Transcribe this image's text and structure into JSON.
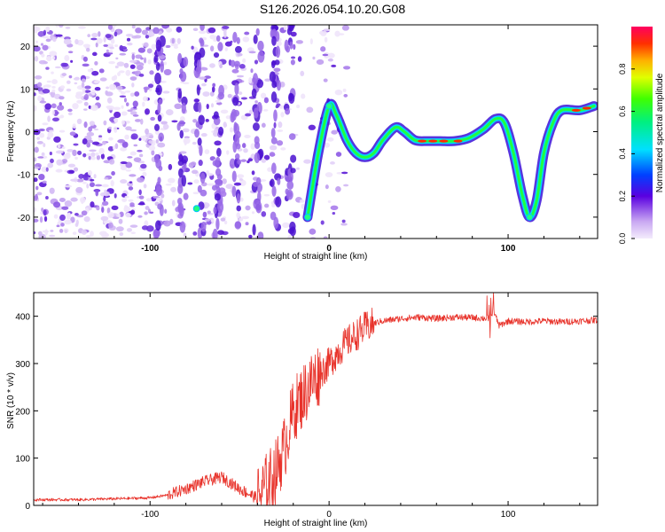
{
  "title": "S126.2026.054.10.20.G08",
  "colors": {
    "snr_line": "#e8332b",
    "axis": "#000000",
    "background": "#ffffff"
  },
  "chart_data": [
    {
      "type": "heatmap",
      "title": "",
      "xlabel": "Height of straight line (km)",
      "ylabel": "Frequency (Hz)",
      "xlim": [
        -165,
        150
      ],
      "ylim": [
        -25,
        25
      ],
      "xticks": [
        -100,
        0,
        100
      ],
      "xtick_labels": [
        "-100",
        "0",
        "100"
      ],
      "yticks": [
        -20,
        -10,
        0,
        10,
        20
      ],
      "ytick_labels": [
        "-20",
        "-10",
        "0",
        "10",
        "20"
      ],
      "colorbar": {
        "label": "Normalized spectral amplitude",
        "range": [
          0,
          1
        ],
        "ticks": [
          0.0,
          0.2,
          0.4,
          0.6,
          0.8
        ],
        "tick_labels": [
          "0.0",
          "0.2",
          "0.4",
          "0.6",
          "0.8"
        ],
        "colormap": "rainbow (lavender to magenta)"
      },
      "ridge": {
        "x": [
          -12,
          -6,
          0,
          4,
          10,
          15,
          20,
          25,
          30,
          37,
          42,
          48,
          55,
          62,
          70,
          78,
          86,
          93,
          98,
          103,
          108,
          112,
          116,
          120,
          125,
          130,
          140,
          148
        ],
        "y": [
          -20,
          -5,
          6,
          4,
          -2,
          -5,
          -6,
          -5,
          -2,
          1,
          0,
          -2,
          -2.2,
          -2.2,
          -2.2,
          -1.5,
          0.5,
          3,
          2,
          -5,
          -15,
          -20,
          -16,
          -5,
          2,
          5,
          5,
          6
        ]
      }
    },
    {
      "type": "line",
      "title": "",
      "xlabel": "Height of straight line (km)",
      "ylabel": "SNR (10 * v/v)",
      "xlim": [
        -165,
        150
      ],
      "ylim": [
        0,
        450
      ],
      "xticks": [
        -100,
        0,
        100
      ],
      "xtick_labels": [
        "-100",
        "0",
        "100"
      ],
      "yticks": [
        0,
        100,
        200,
        300,
        400
      ],
      "ytick_labels": [
        "0",
        "100",
        "200",
        "300",
        "400"
      ],
      "series": [
        {
          "name": "SNR",
          "x": [
            -165,
            -140,
            -120,
            -100,
            -90,
            -80,
            -70,
            -60,
            -50,
            -40,
            -30,
            -25,
            -20,
            -15,
            -10,
            -5,
            0,
            5,
            10,
            15,
            20,
            25,
            30,
            40,
            50,
            60,
            70,
            80,
            90,
            92,
            95,
            100,
            110,
            120,
            130,
            140,
            150
          ],
          "y": [
            12,
            12,
            14,
            16,
            22,
            35,
            50,
            60,
            35,
            15,
            70,
            120,
            200,
            230,
            260,
            280,
            300,
            325,
            345,
            360,
            375,
            385,
            390,
            395,
            398,
            395,
            398,
            397,
            395,
            410,
            380,
            390,
            388,
            390,
            388,
            390,
            392
          ]
        }
      ]
    }
  ]
}
